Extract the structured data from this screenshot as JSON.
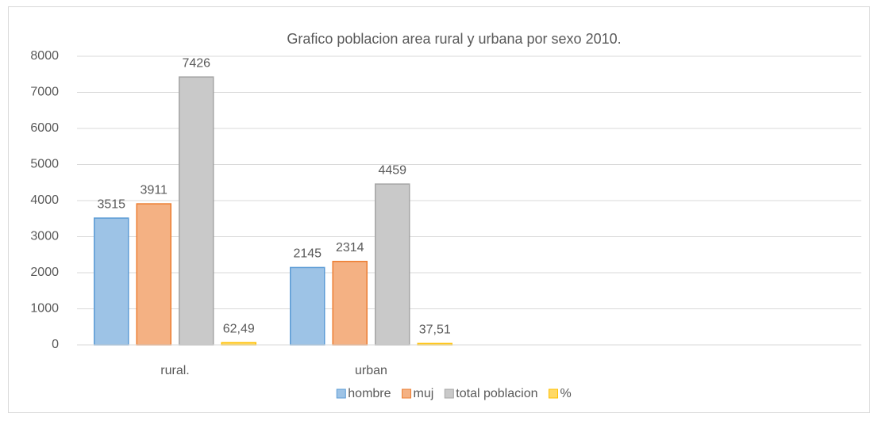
{
  "chart_data": {
    "type": "bar",
    "title": "Grafico poblacion area rural y urbana por sexo 2010.",
    "categories": [
      "rural.",
      "urban",
      null,
      null
    ],
    "series": [
      {
        "name": "hombre",
        "color": "#9dc3e6",
        "border": "#5b9bd5",
        "values": [
          3515,
          2145,
          null,
          null
        ]
      },
      {
        "name": "muj",
        "color": "#f4b183",
        "border": "#ed7d31",
        "values": [
          3911,
          2314,
          null,
          null
        ]
      },
      {
        "name": "total poblacion",
        "color": "#c9c9c9",
        "border": "#a5a5a5",
        "values": [
          7426,
          4459,
          null,
          null
        ]
      },
      {
        "name": "%",
        "color": "#ffd966",
        "border": "#ffc000",
        "values": [
          62.49,
          37.51,
          null,
          null
        ],
        "value_labels": [
          "62,49",
          "37,51",
          null,
          null
        ]
      }
    ],
    "ylim": [
      0,
      8000
    ],
    "yticks": [
      0,
      1000,
      2000,
      3000,
      4000,
      5000,
      6000,
      7000,
      8000
    ],
    "grid": true,
    "legend": "bottom"
  }
}
